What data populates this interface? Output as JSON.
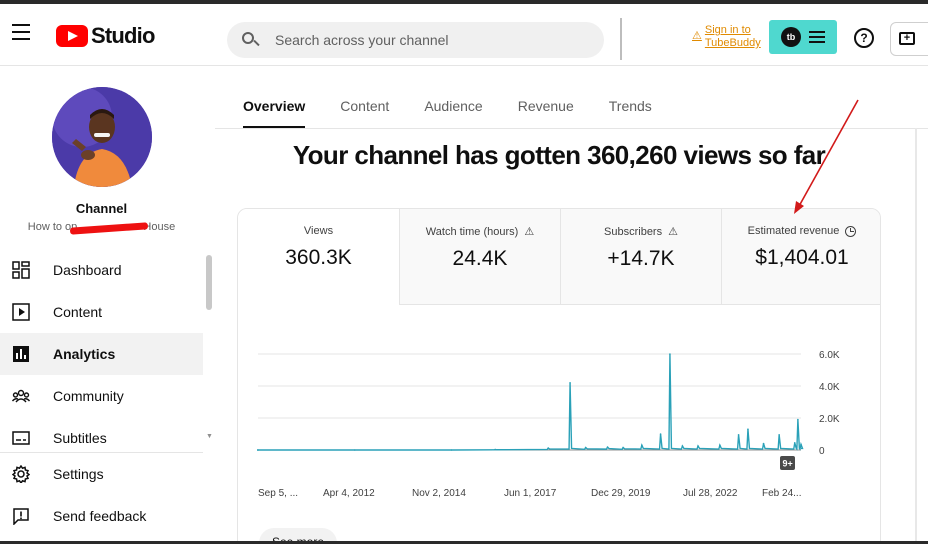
{
  "header": {
    "logo_text": "Studio",
    "search_placeholder": "Search across your channel",
    "tubebuddy_signin_line1": "Sign in to",
    "tubebuddy_signin_line2": "TubeBuddy",
    "tubebuddy_badge": "tb"
  },
  "sidebar": {
    "channel_title": "Channel",
    "channel_name_left": "How to op",
    "channel_name_right": "House",
    "items": [
      {
        "label": "Dashboard",
        "icon": "dashboard-icon"
      },
      {
        "label": "Content",
        "icon": "content-icon"
      },
      {
        "label": "Analytics",
        "icon": "analytics-icon",
        "active": true
      },
      {
        "label": "Community",
        "icon": "community-icon"
      },
      {
        "label": "Subtitles",
        "icon": "subtitles-icon"
      }
    ],
    "bottom_items": [
      {
        "label": "Settings",
        "icon": "gear-icon"
      },
      {
        "label": "Send feedback",
        "icon": "feedback-icon"
      }
    ]
  },
  "tabs": [
    {
      "label": "Overview",
      "active": true
    },
    {
      "label": "Content"
    },
    {
      "label": "Audience"
    },
    {
      "label": "Revenue"
    },
    {
      "label": "Trends"
    }
  ],
  "headline": "Your channel has gotten 360,260 views so far",
  "metrics": [
    {
      "label": "Views",
      "value": "360.3K",
      "icon": ""
    },
    {
      "label": "Watch time (hours)",
      "value": "24.4K",
      "icon": "warning-icon"
    },
    {
      "label": "Subscribers",
      "value": "+14.7K",
      "icon": "warning-icon"
    },
    {
      "label": "Estimated revenue",
      "value": "$1,404.01",
      "icon": "clock-icon"
    }
  ],
  "chart_data": {
    "type": "line",
    "series_color": "#2aa1b8",
    "y_ticks": [
      "6.0K",
      "4.0K",
      "2.0K",
      "0"
    ],
    "ylim": [
      0,
      6000
    ],
    "x_ticks": [
      "Sep 5, ...",
      "Apr 4, 2012",
      "Nov 2, 2014",
      "Jun 1, 2017",
      "Dec 29, 2019",
      "Jul 28, 2022",
      "Feb 24..."
    ],
    "x": [
      "2009-09",
      "2012-04",
      "2014-11",
      "2016-01",
      "2017-06",
      "2018-01",
      "2018-06",
      "2019-01",
      "2019-06",
      "2019-12",
      "2020-06",
      "2020-09",
      "2021-01",
      "2021-06",
      "2022-01",
      "2022-07",
      "2022-10",
      "2023-03",
      "2023-08",
      "2024-01",
      "2024-02",
      "2024-03"
    ],
    "y": [
      0,
      0,
      0,
      30,
      120,
      4200,
      150,
      180,
      150,
      300,
      1000,
      6000,
      250,
      250,
      300,
      950,
      1300,
      400,
      950,
      450,
      1900,
      350
    ],
    "badge": "9+"
  },
  "see_more_label": "See more"
}
